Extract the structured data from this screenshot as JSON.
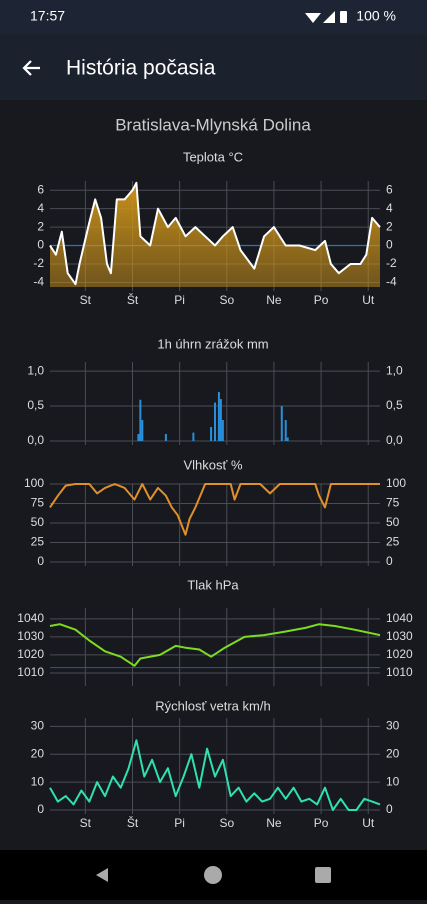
{
  "status_bar": {
    "time": "17:57",
    "battery": "100 %"
  },
  "app_bar": {
    "title": "História počasia"
  },
  "station": "Bratislava-Mlynská Dolina",
  "chart_data": [
    {
      "type": "line",
      "title": "Teplota °C",
      "color": "#ffffff",
      "fill_color": "#c8901a",
      "baseline": 0,
      "baseline_color": "#2a6fd0",
      "x": [
        0,
        3,
        6,
        9,
        13,
        15,
        20,
        23,
        26,
        29,
        31,
        34,
        38,
        42,
        44,
        46,
        51,
        55,
        60,
        64,
        69,
        74,
        79,
        84,
        88,
        93,
        97,
        104,
        109,
        114,
        120,
        127,
        135,
        140,
        143,
        147,
        153,
        158,
        161,
        164,
        168
      ],
      "values": [
        0,
        -1,
        1.5,
        -3,
        -4.2,
        -2,
        2.5,
        5,
        3,
        -2,
        -3,
        5,
        5,
        6,
        6.8,
        1,
        0,
        4,
        2,
        3,
        1,
        2,
        1,
        0,
        1,
        2,
        -0.5,
        -2.5,
        1,
        2,
        0,
        0,
        -0.5,
        0.5,
        -2,
        -3,
        -2,
        -2,
        -1,
        3,
        2
      ],
      "xlim": [
        0,
        168
      ],
      "xticks": [
        {
          "value": 18,
          "label": "St"
        },
        {
          "value": 42,
          "label": "Št"
        },
        {
          "value": 66,
          "label": "Pi"
        },
        {
          "value": 90,
          "label": "So"
        },
        {
          "value": 114,
          "label": "Ne"
        },
        {
          "value": 138,
          "label": "Po"
        },
        {
          "value": 162,
          "label": "Ut"
        }
      ],
      "ylim": [
        -4.5,
        7
      ],
      "yticks": [
        -4,
        -2,
        0,
        2,
        4,
        6
      ],
      "grid": true
    },
    {
      "type": "bar",
      "title": "1h úhrn zrážok mm",
      "color": "#2a8fd8",
      "x": [
        45,
        46,
        47,
        59,
        73,
        82,
        84,
        86,
        87,
        88,
        118,
        120,
        121
      ],
      "values": [
        0.1,
        0.59,
        0.3,
        0.1,
        0.12,
        0.2,
        0.55,
        0.7,
        0.6,
        0.3,
        0.5,
        0.3,
        0.05
      ],
      "xlim": [
        0,
        168
      ],
      "xticks": [
        18,
        42,
        66,
        90,
        114,
        138,
        162
      ],
      "ylim": [
        0,
        1.13
      ],
      "yticks": [
        {
          "value": 0,
          "label": "0,0"
        },
        {
          "value": 0.5,
          "label": "0,5"
        },
        {
          "value": 1,
          "label": "1,0"
        }
      ],
      "grid": true
    },
    {
      "type": "line",
      "title": "Vlhkosť %",
      "color": "#e0902a",
      "x": [
        0,
        4,
        8,
        13,
        20,
        24,
        28,
        33,
        38,
        43,
        47,
        51,
        55,
        59,
        62,
        65,
        69,
        71,
        74,
        79,
        84,
        92,
        94,
        97,
        107,
        112,
        117,
        135,
        137,
        140,
        143,
        168
      ],
      "values": [
        70,
        85,
        98,
        100,
        100,
        88,
        95,
        100,
        95,
        80,
        100,
        80,
        95,
        85,
        70,
        60,
        35,
        55,
        70,
        100,
        100,
        100,
        80,
        100,
        100,
        88,
        100,
        100,
        85,
        70,
        100,
        100
      ],
      "xlim": [
        0,
        168
      ],
      "xticks": [
        18,
        42,
        66,
        90,
        114,
        138,
        162
      ],
      "ylim": [
        0,
        100
      ],
      "yticks": [
        0,
        25,
        50,
        75,
        100
      ],
      "grid": true
    },
    {
      "type": "line",
      "title": "Tlak hPa",
      "color": "#7ddc1f",
      "baseline": 1013,
      "baseline_color": "#2a4f90",
      "x": [
        0,
        5,
        13,
        20,
        28,
        36,
        43,
        46,
        56,
        64,
        69,
        76,
        82,
        89,
        99,
        109,
        120,
        130,
        137,
        145,
        155,
        168
      ],
      "values": [
        1036,
        1037,
        1034,
        1028,
        1022,
        1019,
        1014,
        1018,
        1020,
        1025,
        1024,
        1023,
        1019,
        1024,
        1030,
        1031,
        1033,
        1035,
        1037,
        1036,
        1034,
        1031
      ],
      "xlim": [
        0,
        168
      ],
      "xticks": [
        18,
        42,
        66,
        90,
        114,
        138,
        162
      ],
      "ylim": [
        1005,
        1046
      ],
      "yticks": [
        1010,
        1020,
        1030,
        1040
      ],
      "grid": true
    },
    {
      "type": "line",
      "title": "Rýchlosť vetra km/h",
      "color": "#2fe0b0",
      "x": [
        0,
        4,
        8,
        12,
        16,
        20,
        24,
        28,
        32,
        36,
        40,
        44,
        48,
        52,
        56,
        60,
        64,
        68,
        72,
        76,
        80,
        84,
        88,
        92,
        96,
        100,
        104,
        108,
        112,
        116,
        120,
        124,
        128,
        132,
        136,
        140,
        144,
        148,
        152,
        156,
        160,
        164,
        168
      ],
      "values": [
        8,
        3,
        5,
        2,
        7,
        3,
        10,
        5,
        12,
        8,
        15,
        25,
        12,
        18,
        10,
        15,
        5,
        12,
        20,
        8,
        22,
        12,
        18,
        5,
        8,
        3,
        6,
        3,
        4,
        8,
        4,
        8,
        3,
        4,
        2,
        8,
        0,
        4,
        0,
        0,
        4,
        3,
        2
      ],
      "xlim": [
        0,
        168
      ],
      "xticks": [
        {
          "value": 18,
          "label": "St"
        },
        {
          "value": 42,
          "label": "Št"
        },
        {
          "value": 66,
          "label": "Pi"
        },
        {
          "value": 90,
          "label": "So"
        },
        {
          "value": 114,
          "label": "Ne"
        },
        {
          "value": 138,
          "label": "Po"
        },
        {
          "value": 162,
          "label": "Ut"
        }
      ],
      "ylim": [
        0,
        33
      ],
      "yticks": [
        0,
        10,
        20,
        30
      ],
      "grid": true
    }
  ]
}
